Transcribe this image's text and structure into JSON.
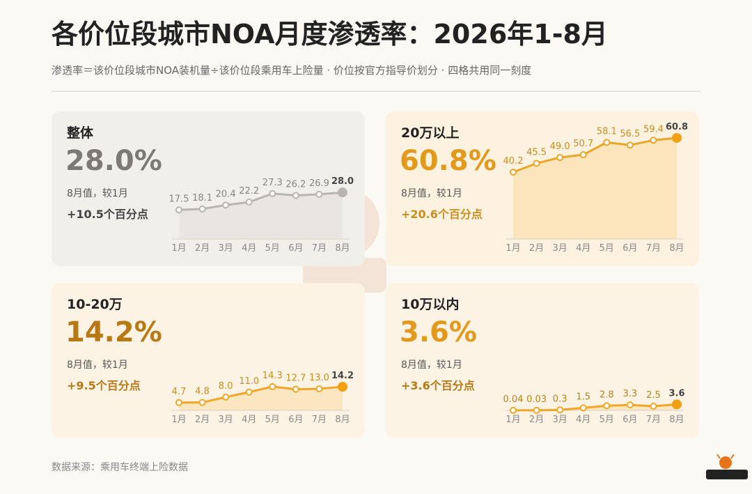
{
  "header": {
    "title": "各价位段城市NOA月度渗透率：2026年1-8月",
    "subtitle": "渗透率＝该价位段城市NOA装机量÷该价位段乘用车上险量 · 价位按官方指导价划分 · 四格共用同一刻度"
  },
  "footer": {
    "source": "数据来源：乘用车终端上险数据"
  },
  "chart_data": [
    {
      "type": "area",
      "title": "整体",
      "value_text": "28.0%",
      "note": "8月值，较1月",
      "delta": "+10.5个百分点",
      "categories": [
        "1月",
        "2月",
        "3月",
        "4月",
        "5月",
        "6月",
        "7月",
        "8月"
      ],
      "labels": [
        "17.5",
        "18.1",
        "20.4",
        "22.2",
        "27.3",
        "26.2",
        "26.9",
        "28.0"
      ],
      "values": [
        17.5,
        18.1,
        20.4,
        22.2,
        27.3,
        26.2,
        26.9,
        28.0
      ],
      "ylim": [
        0,
        70
      ],
      "colors": {
        "line": "#b9b5ae",
        "fill": "#e6e3dd",
        "text": "#8a857d",
        "end": "#b9b5ae"
      }
    },
    {
      "type": "area",
      "title": "20万以上",
      "value_text": "60.8%",
      "note": "8月值，较1月",
      "delta": "+20.6个百分点",
      "categories": [
        "1月",
        "2月",
        "3月",
        "4月",
        "5月",
        "6月",
        "7月",
        "8月"
      ],
      "labels": [
        "40.2",
        "45.5",
        "49.0",
        "50.7",
        "58.1",
        "56.5",
        "59.4",
        "60.8"
      ],
      "values": [
        40.2,
        45.5,
        49.0,
        50.7,
        58.1,
        56.5,
        59.4,
        60.8
      ],
      "ylim": [
        0,
        70
      ],
      "colors": {
        "line": "#e8a626",
        "fill": "#fbdfae",
        "text": "#c98e1c",
        "end": "#f0a010"
      }
    },
    {
      "type": "area",
      "title": "10-20万",
      "value_text": "14.2%",
      "note": "8月值，较1月",
      "delta": "+9.5个百分点",
      "categories": [
        "1月",
        "2月",
        "3月",
        "4月",
        "5月",
        "6月",
        "7月",
        "8月"
      ],
      "labels": [
        "4.7",
        "4.8",
        "8.0",
        "11.0",
        "14.3",
        "12.7",
        "13.0",
        "14.2"
      ],
      "values": [
        4.7,
        4.8,
        8.0,
        11.0,
        14.3,
        12.7,
        13.0,
        14.2
      ],
      "ylim": [
        0,
        70
      ],
      "colors": {
        "line": "#f0a626",
        "fill": "#fadfb0",
        "text": "#c98e1c",
        "end": "#f0a010"
      }
    },
    {
      "type": "area",
      "title": "10万以内",
      "value_text": "3.6%",
      "note": "8月值，较1月",
      "delta": "+3.6个百分点",
      "categories": [
        "1月",
        "2月",
        "3月",
        "4月",
        "5月",
        "6月",
        "7月",
        "8月"
      ],
      "labels": [
        "0.04",
        "0.03",
        "0.3",
        "1.5",
        "2.8",
        "3.3",
        "2.5",
        "3.6"
      ],
      "values": [
        0.04,
        0.03,
        0.3,
        1.5,
        2.8,
        3.3,
        2.5,
        3.6
      ],
      "ylim": [
        0,
        70
      ],
      "colors": {
        "line": "#f0a626",
        "fill": "#fadfb0",
        "text": "#b8831a",
        "end": "#f0a010"
      }
    }
  ],
  "colors": {
    "value_gray": "#7d7a75",
    "value_orange": "#e39a1c",
    "value_brown": "#b87813"
  },
  "logo": {
    "icon": "brand-logo-icon"
  }
}
